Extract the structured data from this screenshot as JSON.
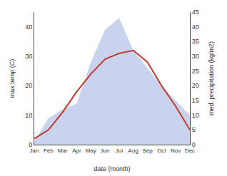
{
  "chart_data": {
    "type": "line",
    "categories": [
      "Jan",
      "Feb",
      "Mar",
      "Apr",
      "May",
      "Jun",
      "Jul",
      "Aug",
      "Sep",
      "Oct",
      "Nov",
      "Dec"
    ],
    "xlabel": "date (month)",
    "ylabel": "max temp (C)",
    "y2label": "med. precipitation (kg/m2)",
    "ylim": [
      0,
      45
    ],
    "yticks": [
      0,
      10,
      20,
      30,
      40
    ],
    "y2lim": [
      0,
      45
    ],
    "y2ticks": [
      0,
      5,
      10,
      15,
      20,
      25,
      30,
      35,
      40,
      45
    ],
    "grid": false,
    "series": [
      {
        "type": "area",
        "axis": "y2",
        "color": "#b8c4e8",
        "values": [
          1,
          9,
          12,
          14,
          28,
          39,
          43,
          32,
          26,
          20,
          15,
          10
        ]
      },
      {
        "type": "line",
        "color": "#c0392b",
        "values": [
          2,
          5,
          11,
          18,
          24,
          29,
          31,
          32,
          28,
          20,
          13,
          5
        ]
      }
    ]
  }
}
